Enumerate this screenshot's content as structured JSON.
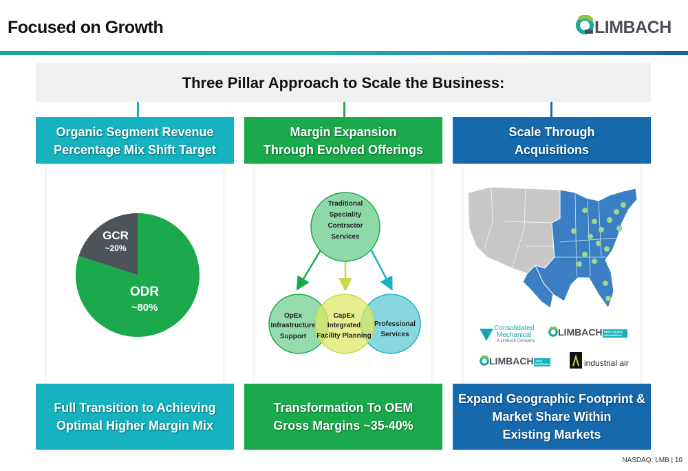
{
  "page": {
    "title": "Focused on Growth",
    "footer": "NASDAQ: LMB | 10"
  },
  "logo": {
    "text": "LIMBACH",
    "mark_icon": "limbach-q-logo-icon",
    "colors": {
      "green": "#8cc63f",
      "teal": "#1aa89a",
      "gray": "#4a4f55"
    }
  },
  "banner": {
    "title": "Three Pillar Approach to Scale the Business:"
  },
  "pillars": [
    {
      "head_line1": "Organic Segment Revenue",
      "head_line2": "Percentage Mix Shift Target",
      "foot_line1": "Full Transition to Achieving",
      "foot_line2": "Optimal Higher Margin Mix",
      "color": "#16b2bf"
    },
    {
      "head_line1": "Margin Expansion",
      "head_line2": "Through Evolved Offerings",
      "foot_line1": "Transformation To OEM",
      "foot_line2": "Gross Margins ~35-40%",
      "color": "#1ba94c"
    },
    {
      "head_line1": "Scale Through",
      "head_line2": "Acquisitions",
      "foot_line1": "Expand Geographic Footprint &",
      "foot_line2": "Market Share Within",
      "foot_line3": "Existing Markets",
      "color": "#1569ac"
    }
  ],
  "chart_data": {
    "type": "pie",
    "slices": [
      {
        "name": "ODR",
        "label": "~80%",
        "value": 80,
        "color": "#1ba94c"
      },
      {
        "name": "GCR",
        "label": "~20%",
        "value": 20,
        "color": "#4d5459"
      }
    ]
  },
  "venn": {
    "top": {
      "lines": [
        "Traditional",
        "Speciality",
        "Contractor",
        "Services"
      ],
      "color": "#8fd9a8"
    },
    "left": {
      "lines": [
        "OpEx",
        "Infrastructure",
        "Support"
      ],
      "color": "#8fd9a8"
    },
    "middle": {
      "lines": [
        "CapEx",
        "Integrated",
        "Facility Planning"
      ],
      "color": "#dde86a"
    },
    "right": {
      "lines": [
        "Professional",
        "Services"
      ],
      "color": "#7fd6dc"
    }
  },
  "acquisitions": {
    "map_icon": "us-map-icon",
    "map_colors": {
      "gray": "#c8c8c8",
      "blue": "#3a7fc4",
      "dots": "#9fd69a"
    },
    "brands": [
      {
        "name": "Consolidated",
        "name2": "Mechanical",
        "tagline": "A Limbach Company"
      },
      {
        "name": "LIMBACH",
        "tag": "RENT ISLAND MECHANICAL"
      },
      {
        "name": "LIMBACH",
        "tag": "JAKE MARSHALL"
      },
      {
        "name": "industrial air"
      }
    ]
  }
}
